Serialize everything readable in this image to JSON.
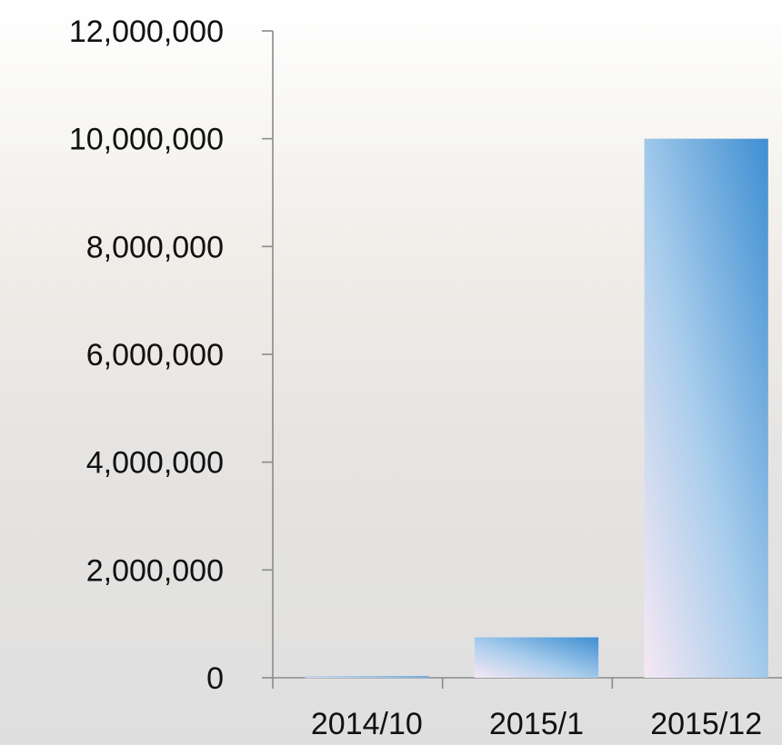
{
  "chart_data": {
    "type": "bar",
    "categories": [
      "2014/10",
      "2015/1",
      "2015/12"
    ],
    "values": [
      30000,
      750000,
      10000000
    ],
    "ylim": [
      0,
      12000000
    ],
    "yticks": [
      0,
      2000000,
      4000000,
      6000000,
      8000000,
      10000000,
      12000000
    ],
    "ytick_labels": [
      "0",
      "2,000,000",
      "4,000,000",
      "6,000,000",
      "8,000,000",
      "10,000,000",
      "12,000,000"
    ],
    "title": "",
    "xlabel": "",
    "ylabel": "",
    "grid": false,
    "legend": "none",
    "colors": {
      "bar_dark": "#3f8fd2",
      "bar_mid": "#9ec8ec",
      "bar_light": "#f6e8f3"
    }
  }
}
